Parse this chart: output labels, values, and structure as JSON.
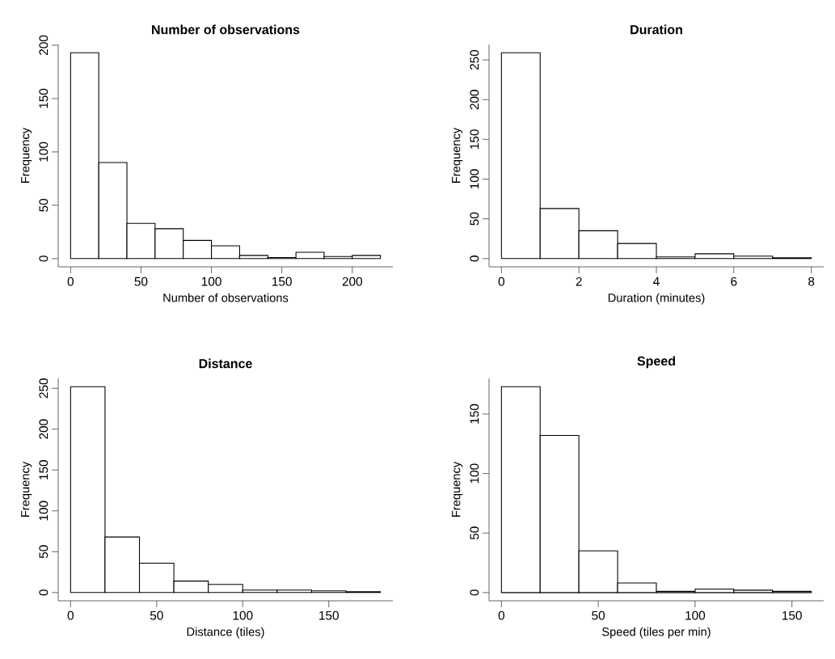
{
  "chart_data": [
    {
      "type": "histogram",
      "title": "Number of observations",
      "xlabel": "Number of observations",
      "ylabel": "Frequency",
      "color": "#ffffff",
      "bins": [
        0,
        20,
        40,
        60,
        80,
        100,
        120,
        140,
        160,
        180,
        200,
        220
      ],
      "values": [
        193,
        90,
        33,
        28,
        17,
        12,
        3,
        1,
        6,
        2,
        3
      ],
      "xlim": [
        -8.8,
        228.8
      ],
      "ylim": [
        -7.7,
        200.7
      ],
      "xticks": [
        0,
        50,
        100,
        150,
        200
      ],
      "yticks": [
        0,
        50,
        100,
        150,
        200
      ]
    },
    {
      "type": "histogram",
      "title": "Duration",
      "xlabel": "Duration (minutes)",
      "ylabel": "Frequency",
      "color": "#ffffff",
      "bins": [
        0,
        1,
        2,
        3,
        4,
        5,
        6,
        7,
        8
      ],
      "values": [
        259,
        63,
        35,
        19,
        2,
        6,
        3,
        1
      ],
      "xlim": [
        -0.32,
        8.32
      ],
      "ylim": [
        -10.4,
        269.4
      ],
      "xticks": [
        0,
        2,
        4,
        6,
        8
      ],
      "yticks": [
        0,
        50,
        100,
        150,
        200,
        250
      ]
    },
    {
      "type": "histogram",
      "title": "Distance",
      "xlabel": "Distance (tiles)",
      "ylabel": "Frequency",
      "color": "#ffffff",
      "bins": [
        0,
        20,
        40,
        60,
        80,
        100,
        120,
        140,
        160,
        180
      ],
      "values": [
        252,
        68,
        36,
        14,
        10,
        3,
        3,
        2,
        1
      ],
      "xlim": [
        -7.2,
        187.2
      ],
      "ylim": [
        -10.1,
        262.1
      ],
      "xticks": [
        0,
        50,
        100,
        150
      ],
      "yticks": [
        0,
        50,
        100,
        150,
        200,
        250
      ]
    },
    {
      "type": "histogram",
      "title": "Speed",
      "xlabel": "Speed (tiles per min)",
      "ylabel": "Frequency",
      "color": "#ffffff",
      "bins": [
        0,
        20,
        40,
        60,
        80,
        100,
        120,
        140,
        160
      ],
      "values": [
        173,
        132,
        35,
        8,
        1,
        3,
        2,
        1
      ],
      "xlim": [
        -6.4,
        166.4
      ],
      "ylim": [
        -6.9,
        179.9
      ],
      "xticks": [
        0,
        50,
        100,
        150
      ],
      "yticks": [
        0,
        50,
        100,
        150
      ]
    }
  ]
}
